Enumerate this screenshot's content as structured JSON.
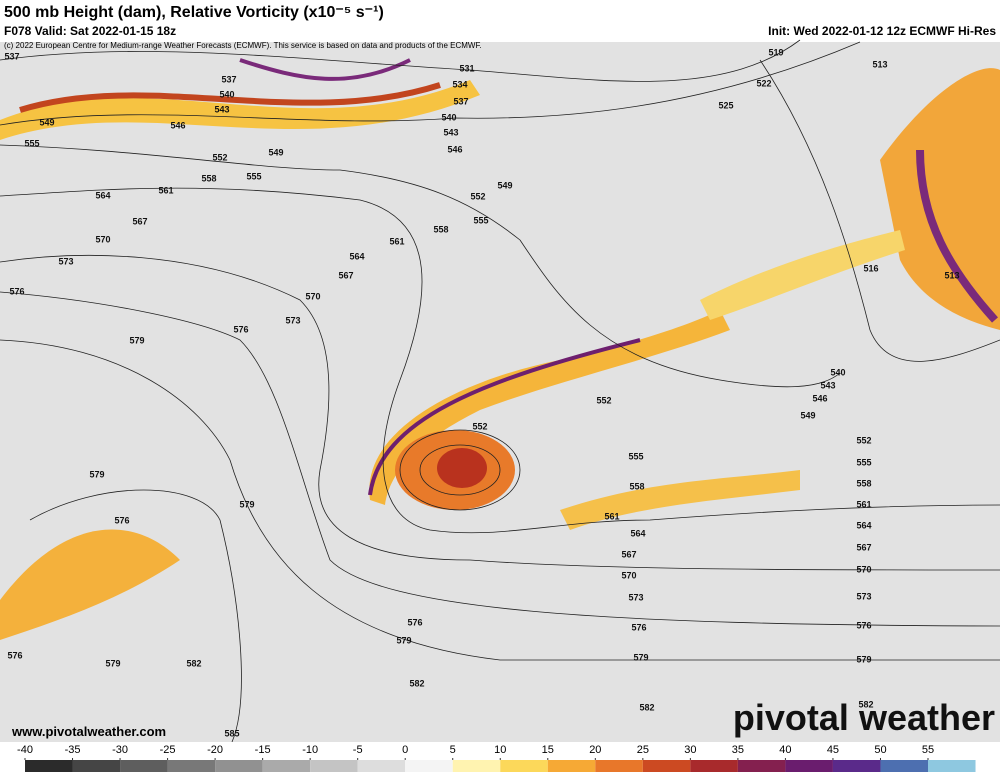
{
  "header": {
    "title": "500 mb Height (dam), Relative Vorticity (x10⁻⁵ s⁻¹)",
    "valid": "F078 Valid: Sat 2022-01-15 18z",
    "init": "Init: Wed 2022-01-12 12z ECMWF Hi-Res",
    "credit": "(c) 2022 European Centre for Medium-range Weather Forecasts (ECMWF). This service is based on data and products of the ECMWF."
  },
  "map": {
    "contour_labels": [
      537,
      531,
      534,
      537,
      540,
      537,
      543,
      546,
      549,
      540,
      543,
      546,
      549,
      552,
      552,
      549,
      555,
      558,
      555,
      561,
      564,
      567,
      570,
      573,
      576,
      555,
      558,
      561,
      564,
      567,
      570,
      573,
      576,
      579,
      519,
      513,
      522,
      525,
      516,
      513,
      540,
      543,
      546,
      549,
      552,
      552,
      552,
      555,
      555,
      558,
      558,
      561,
      561,
      564,
      564,
      567,
      567,
      570,
      570,
      573,
      573,
      576,
      576,
      579,
      579,
      579,
      576,
      579,
      576,
      579,
      582,
      576,
      579,
      582,
      582,
      582,
      585
    ]
  },
  "footer": {
    "website": "www.pivotalweather.com",
    "logo": "pivotal weather"
  },
  "colorbar": {
    "ticks": [
      -40,
      -35,
      -30,
      -25,
      -20,
      -15,
      -10,
      -5,
      0,
      5,
      10,
      15,
      20,
      25,
      30,
      35,
      40,
      45,
      50,
      55
    ]
  }
}
